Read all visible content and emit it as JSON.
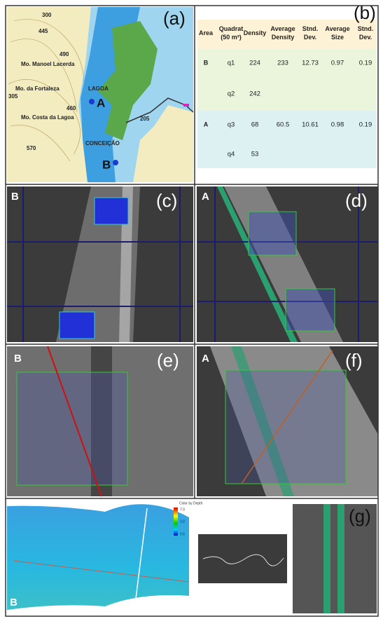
{
  "panels": {
    "a": "(a)",
    "b": "(b)",
    "c": "(c)",
    "d": "(d)",
    "e": "(e)",
    "f": "(f)",
    "g": "(g)"
  },
  "map": {
    "labels": [
      "300",
      "445",
      "490",
      "Mo. Manoel Lacerda",
      "Mo. da Fortaleza",
      "305",
      "460",
      "Mo. Costa da Lagoa",
      "570",
      "LAGOA",
      "CONCEIÇÃO",
      "205"
    ],
    "site_a": "A",
    "site_b": "B"
  },
  "table": {
    "headers": [
      "Area",
      "Quadrat (50 m²)",
      "Density",
      "Average Density",
      "Stnd. Dev.",
      "Average Size",
      "Stnd. Dev."
    ],
    "rows": [
      {
        "area": "B",
        "quadrat": "q1",
        "density": 224,
        "average_density": 233,
        "stnd_dev": 12.73,
        "average_size": 0.97,
        "size_stnd_dev": 0.19
      },
      {
        "quadrat": "q2",
        "density": 242
      },
      {
        "area": "A",
        "quadrat": "q3",
        "density": 68,
        "average_density": 60.5,
        "stnd_dev": 10.61,
        "average_size": 0.98,
        "size_stnd_dev": 0.19
      },
      {
        "quadrat": "q4",
        "density": 53
      }
    ]
  },
  "area_labels": {
    "c": "B",
    "d": "A",
    "e": "B",
    "f": "A",
    "g": "B"
  },
  "colorbar": {
    "title": "Color by Depth",
    "ticks": [
      "7.0",
      "3.8",
      "0.6"
    ]
  }
}
